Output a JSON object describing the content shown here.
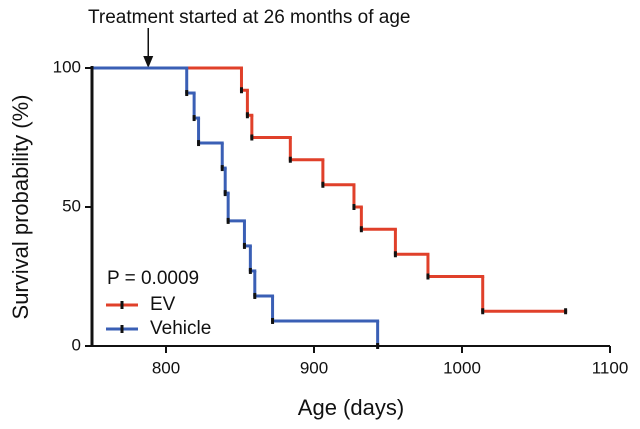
{
  "chart_data": {
    "type": "step",
    "annotation": {
      "text": "Treatment started at 26 months of age",
      "x": 788
    },
    "xlabel": "Age (days)",
    "ylabel": "Survival probability (%)",
    "stat_text": "P = 0.0009",
    "xlim": [
      750,
      1100
    ],
    "xticks": [
      800,
      900,
      1000,
      1100
    ],
    "ylim": [
      0,
      100
    ],
    "yticks": [
      0,
      50,
      100
    ],
    "legend": "lower-left",
    "series": [
      {
        "name": "EV",
        "color": "#e0402a",
        "x": [
          750,
          851,
          855,
          858,
          884,
          906,
          927,
          932,
          955,
          977,
          1014,
          1070
        ],
        "values": [
          100,
          92,
          83,
          75,
          67,
          58,
          50,
          42,
          33,
          25,
          12.5,
          12.5
        ]
      },
      {
        "name": "Vehicle",
        "color": "#3a5fb5",
        "x": [
          750,
          814,
          819,
          822,
          838,
          840,
          842,
          853,
          857,
          860,
          872,
          943
        ],
        "values": [
          100,
          91,
          82,
          73,
          64,
          55,
          45,
          36,
          27,
          18,
          9,
          0
        ]
      }
    ]
  }
}
